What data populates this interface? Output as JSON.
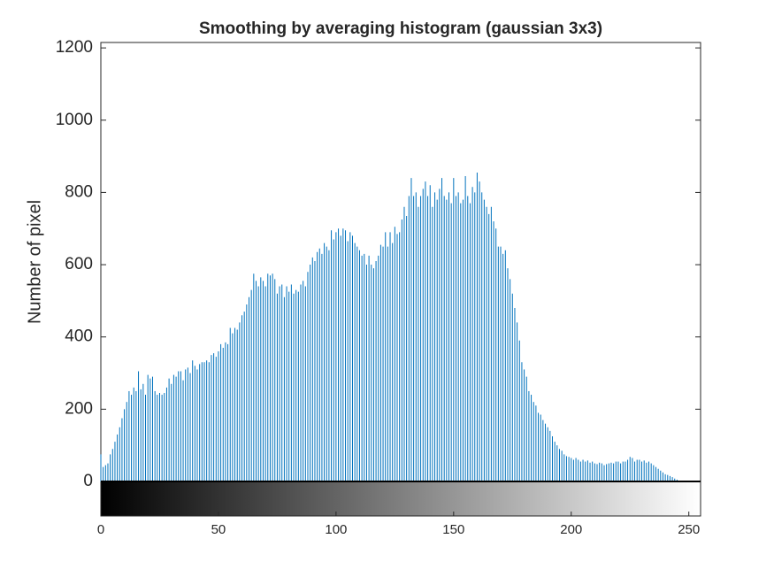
{
  "chart_data": {
    "type": "stem",
    "title": "Smoothing by averaging histogram (gaussian 3x3)",
    "y_label": "Number of pixel",
    "color": "#0072bd",
    "x": [
      0,
      1,
      2,
      3,
      4,
      5,
      6,
      7,
      8,
      9,
      10,
      11,
      12,
      13,
      14,
      15,
      16,
      17,
      18,
      19,
      20,
      21,
      22,
      23,
      24,
      25,
      26,
      27,
      28,
      29,
      30,
      31,
      32,
      33,
      34,
      35,
      36,
      37,
      38,
      39,
      40,
      41,
      42,
      43,
      44,
      45,
      46,
      47,
      48,
      49,
      50,
      51,
      52,
      53,
      54,
      55,
      56,
      57,
      58,
      59,
      60,
      61,
      62,
      63,
      64,
      65,
      66,
      67,
      68,
      69,
      70,
      71,
      72,
      73,
      74,
      75,
      76,
      77,
      78,
      79,
      80,
      81,
      82,
      83,
      84,
      85,
      86,
      87,
      88,
      89,
      90,
      91,
      92,
      93,
      94,
      95,
      96,
      97,
      98,
      99,
      100,
      101,
      102,
      103,
      104,
      105,
      106,
      107,
      108,
      109,
      110,
      111,
      112,
      113,
      114,
      115,
      116,
      117,
      118,
      119,
      120,
      121,
      122,
      123,
      124,
      125,
      126,
      127,
      128,
      129,
      130,
      131,
      132,
      133,
      134,
      135,
      136,
      137,
      138,
      139,
      140,
      141,
      142,
      143,
      144,
      145,
      146,
      147,
      148,
      149,
      150,
      151,
      152,
      153,
      154,
      155,
      156,
      157,
      158,
      159,
      160,
      161,
      162,
      163,
      164,
      165,
      166,
      167,
      168,
      169,
      170,
      171,
      172,
      173,
      174,
      175,
      176,
      177,
      178,
      179,
      180,
      181,
      182,
      183,
      184,
      185,
      186,
      187,
      188,
      189,
      190,
      191,
      192,
      193,
      194,
      195,
      196,
      197,
      198,
      199,
      200,
      201,
      202,
      203,
      204,
      205,
      206,
      207,
      208,
      209,
      210,
      211,
      212,
      213,
      214,
      215,
      216,
      217,
      218,
      219,
      220,
      221,
      222,
      223,
      224,
      225,
      226,
      227,
      228,
      229,
      230,
      231,
      232,
      233,
      234,
      235,
      236,
      237,
      238,
      239,
      240,
      241,
      242,
      243,
      244,
      245,
      246,
      247,
      248,
      249,
      250,
      251,
      252,
      253,
      254,
      255
    ],
    "values": [
      75,
      40,
      45,
      50,
      75,
      90,
      110,
      130,
      150,
      175,
      200,
      220,
      250,
      240,
      260,
      250,
      305,
      255,
      270,
      240,
      295,
      285,
      290,
      250,
      240,
      245,
      240,
      245,
      260,
      285,
      270,
      295,
      290,
      305,
      305,
      280,
      310,
      315,
      300,
      335,
      320,
      310,
      325,
      330,
      330,
      335,
      330,
      350,
      355,
      345,
      360,
      380,
      370,
      385,
      380,
      425,
      410,
      425,
      420,
      440,
      460,
      470,
      490,
      510,
      530,
      575,
      555,
      540,
      565,
      555,
      540,
      575,
      570,
      575,
      560,
      520,
      540,
      545,
      510,
      540,
      525,
      545,
      520,
      530,
      525,
      545,
      555,
      540,
      580,
      600,
      620,
      610,
      635,
      645,
      630,
      660,
      650,
      640,
      695,
      670,
      690,
      700,
      680,
      700,
      695,
      665,
      690,
      680,
      660,
      650,
      640,
      625,
      630,
      600,
      625,
      600,
      590,
      610,
      625,
      655,
      650,
      690,
      650,
      690,
      660,
      705,
      685,
      690,
      725,
      760,
      735,
      790,
      840,
      790,
      800,
      760,
      790,
      810,
      830,
      790,
      820,
      760,
      800,
      780,
      810,
      840,
      790,
      780,
      800,
      770,
      840,
      790,
      800,
      770,
      780,
      845,
      790,
      770,
      815,
      800,
      855,
      830,
      800,
      780,
      760,
      740,
      760,
      720,
      700,
      650,
      650,
      630,
      640,
      590,
      560,
      520,
      480,
      440,
      390,
      330,
      310,
      290,
      250,
      240,
      220,
      210,
      190,
      185,
      170,
      160,
      150,
      140,
      125,
      110,
      100,
      90,
      85,
      75,
      70,
      68,
      65,
      60,
      65,
      60,
      55,
      60,
      55,
      58,
      52,
      55,
      50,
      48,
      52,
      50,
      45,
      48,
      50,
      52,
      50,
      55,
      55,
      50,
      55,
      55,
      60,
      68,
      65,
      55,
      60,
      60,
      55,
      58,
      52,
      55,
      50,
      45,
      40,
      35,
      30,
      25,
      20,
      18,
      15,
      12,
      8,
      5,
      0,
      0,
      0,
      0,
      0,
      0,
      0,
      0,
      0,
      0
    ],
    "xlim": [
      0,
      255
    ],
    "xticks": [
      0,
      50,
      100,
      150,
      200,
      250
    ],
    "ylim": [
      0,
      1215
    ],
    "yticks": [
      0,
      200,
      400,
      600,
      800,
      1000,
      1200
    ]
  }
}
